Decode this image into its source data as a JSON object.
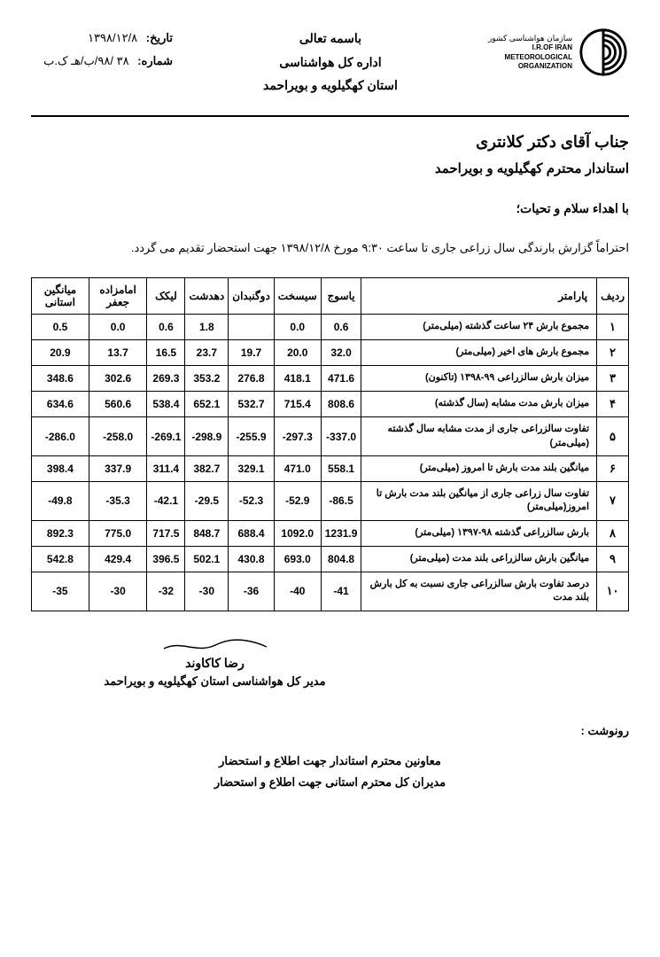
{
  "org": {
    "fa_line1": "سازمان هواشناسی کشور",
    "en_line1": "I.R.OF IRAN",
    "en_line2": "METEOROLOGICAL",
    "en_line3": "ORGANIZATION"
  },
  "header": {
    "bismillah": "باسمه تعالی",
    "dept": "اداره کل هواشناسی",
    "province": "استان  کهگیلویه و بویراحمد"
  },
  "meta": {
    "date_label": "تاریخ:",
    "date_value": "۱۳۹۸/۱۲/۸",
    "num_label": "شماره:",
    "num_value": "۳۸  /۹۸/ب/هـ ک.ب"
  },
  "addressee": {
    "title": "جناب آقای دکتر کلانتری",
    "subtitle": "استاندار محترم کهگیلویه و بویراحمد"
  },
  "salutation": "با اهداء سلام و تحیات؛",
  "intro": "احتراماً  گزارش بارندگی سال زراعی جاری تا ساعت ۹:۳۰ مورخ ۱۳۹۸/۱۲/۸ جهت استحضار تقدیم می گردد.",
  "table": {
    "headers": {
      "idx": "ردیف",
      "param": "پارامتر",
      "stations": [
        "یاسوج",
        "سیسخت",
        "دوگنبدان",
        "دهدشت",
        "لیکک",
        "امامزاده جعفر",
        "میانگین استانی"
      ]
    },
    "rows": [
      {
        "idx": "۱",
        "param": "مجموع بارش ۲۴ ساعت گذشته (میلی‌متر)",
        "vals": [
          "0.6",
          "0.0",
          "",
          "1.8",
          "0.6",
          "0.0",
          "0.5"
        ]
      },
      {
        "idx": "۲",
        "param": "مجموع بارش های اخیر (میلی‌متر)",
        "vals": [
          "32.0",
          "20.0",
          "19.7",
          "23.7",
          "16.5",
          "13.7",
          "20.9"
        ]
      },
      {
        "idx": "۳",
        "param": "میزان بارش سالزراعی ۹۹-۱۳۹۸ (تاکنون)",
        "vals": [
          "471.6",
          "418.1",
          "276.8",
          "353.2",
          "269.3",
          "302.6",
          "348.6"
        ]
      },
      {
        "idx": "۴",
        "param": "میزان بارش مدت مشابه (سال گذشته)",
        "vals": [
          "808.6",
          "715.4",
          "532.7",
          "652.1",
          "538.4",
          "560.6",
          "634.6"
        ]
      },
      {
        "idx": "۵",
        "param": "تفاوت سالزراعی جاری از مدت مشابه سال گذشته (میلی‌متر)",
        "vals": [
          "-337.0",
          "-297.3",
          "-255.9",
          "-298.9",
          "-269.1",
          "-258.0",
          "-286.0"
        ]
      },
      {
        "idx": "۶",
        "param": "میانگین بلند مدت  بارش تا امروز (میلی‌متر)",
        "vals": [
          "558.1",
          "471.0",
          "329.1",
          "382.7",
          "311.4",
          "337.9",
          "398.4"
        ]
      },
      {
        "idx": "۷",
        "param": "تفاوت سال زراعی جاری از میانگین بلند مدت  بارش تا امروز(میلی‌متر)",
        "vals": [
          "-86.5",
          "-52.9",
          "-52.3",
          "-29.5",
          "-42.1",
          "-35.3",
          "-49.8"
        ]
      },
      {
        "idx": "۸",
        "param": "بارش سالزراعی گذشته  ۹۸-۱۳۹۷ (میلی‌متر)",
        "vals": [
          "1231.9",
          "1092.0",
          "688.4",
          "848.7",
          "717.5",
          "775.0",
          "892.3"
        ]
      },
      {
        "idx": "۹",
        "param": "میانگین بارش سالزراعی بلند مدت (میلی‌متر)",
        "vals": [
          "804.8",
          "693.0",
          "430.8",
          "502.1",
          "396.5",
          "429.4",
          "542.8"
        ]
      },
      {
        "idx": "۱۰",
        "param": "درصد تفاوت  بارش سالزراعی جاری نسبت به کل بارش بلند مدت",
        "vals": [
          "-41",
          "-40",
          "-36",
          "-30",
          "-32",
          "-30",
          "-35"
        ]
      }
    ]
  },
  "signature": {
    "name": "رضا کاکاوند",
    "title": "مدیر کل هواشناسی استان کهگیلویه و بویراحمد"
  },
  "cc": {
    "label": "رونوشت :",
    "items": [
      "معاونین محترم استاندار جهت اطلاع و استحضار",
      "مدیران کل محترم استانی جهت اطلاع و استحضار"
    ]
  }
}
